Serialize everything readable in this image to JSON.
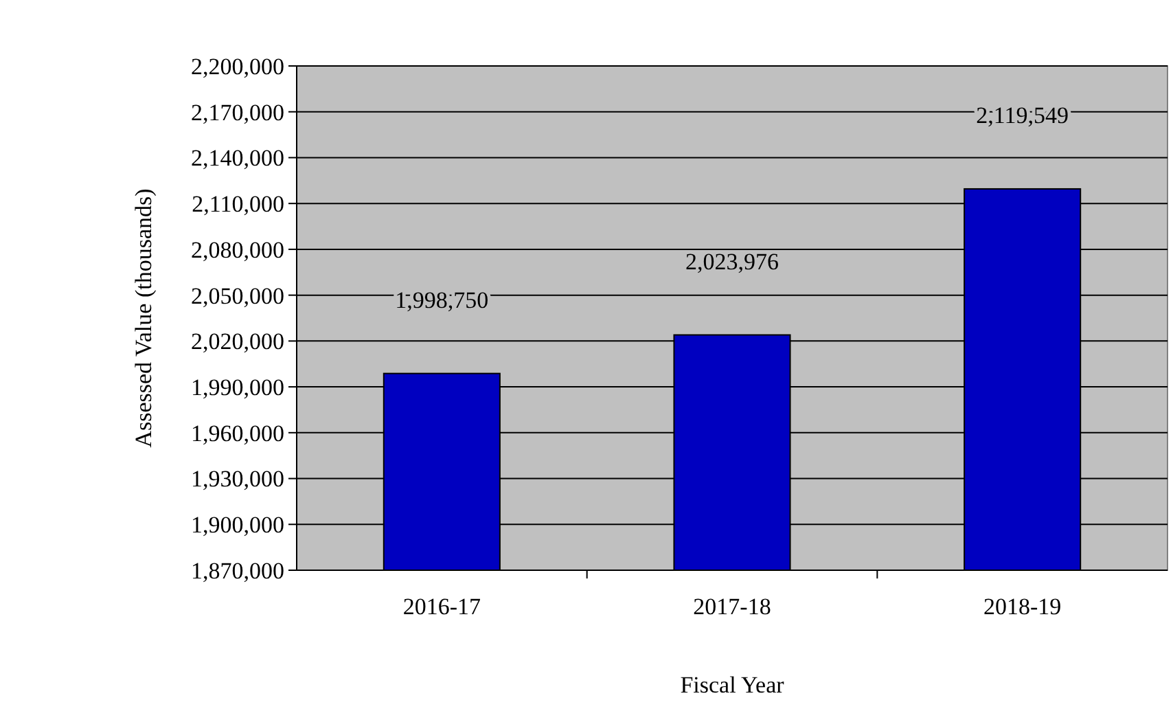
{
  "chart_data": {
    "type": "bar",
    "xlabel": "Fiscal Year",
    "ylabel": "Assessed Value (thousands)",
    "categories": [
      "2016-17",
      "2017-18",
      "2018-19"
    ],
    "values": [
      1998750,
      2023976,
      2119549
    ],
    "color": "#0000c0",
    "ylim": [
      1870000,
      2200000
    ],
    "yticks": [
      {
        "value": 1870000,
        "label": "1,870,000"
      },
      {
        "value": 1900000,
        "label": "1,900,000"
      },
      {
        "value": 1930000,
        "label": "1,930,000"
      },
      {
        "value": 1960000,
        "label": "1,960,000"
      },
      {
        "value": 1990000,
        "label": "1,990,000"
      },
      {
        "value": 2020000,
        "label": "2,020,000"
      },
      {
        "value": 2050000,
        "label": "2,050,000"
      },
      {
        "value": 2080000,
        "label": "2,080,000"
      },
      {
        "value": 2110000,
        "label": "2,110,000"
      },
      {
        "value": 2140000,
        "label": "2,140,000"
      },
      {
        "value": 2170000,
        "label": "2,170,000"
      },
      {
        "value": 2200000,
        "label": "2,200,000"
      }
    ],
    "value_labels": [
      "1,998,750",
      "2,023,976",
      "2,119,549"
    ],
    "grid": "y"
  }
}
